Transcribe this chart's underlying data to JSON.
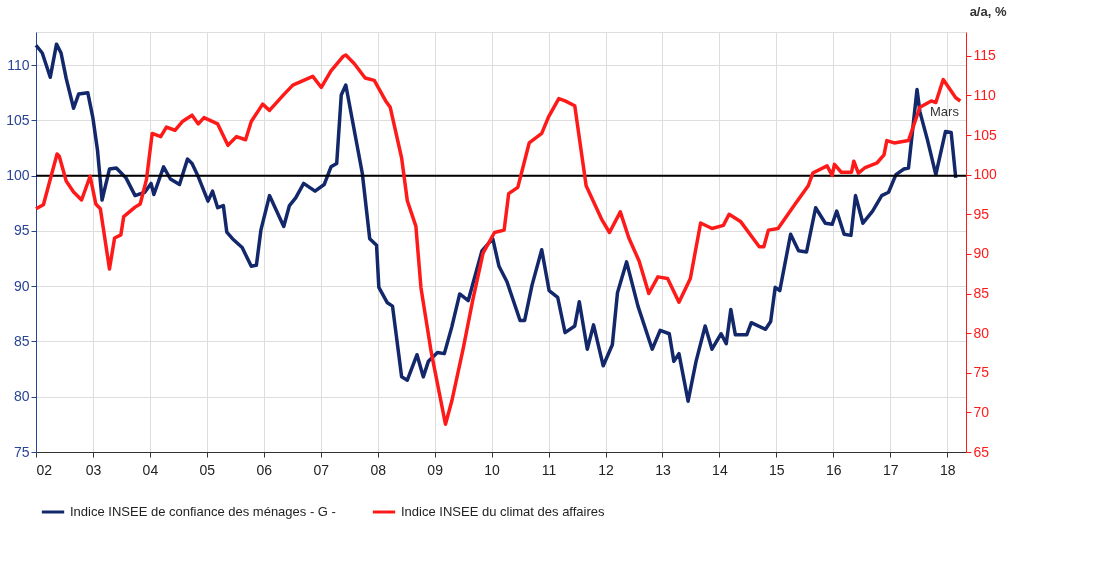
{
  "chart_data": {
    "type": "line",
    "y2label": "a/a, %",
    "xlim": [
      2002,
      2018.33
    ],
    "xticks": [
      {
        "value": 2002,
        "label": "02"
      },
      {
        "value": 2003,
        "label": "03"
      },
      {
        "value": 2004,
        "label": "04"
      },
      {
        "value": 2005,
        "label": "05"
      },
      {
        "value": 2006,
        "label": "06"
      },
      {
        "value": 2007,
        "label": "07"
      },
      {
        "value": 2008,
        "label": "08"
      },
      {
        "value": 2009,
        "label": "09"
      },
      {
        "value": 2010,
        "label": "10"
      },
      {
        "value": 2011,
        "label": "11"
      },
      {
        "value": 2012,
        "label": "12"
      },
      {
        "value": 2013,
        "label": "13"
      },
      {
        "value": 2014,
        "label": "14"
      },
      {
        "value": 2015,
        "label": "15"
      },
      {
        "value": 2016,
        "label": "16"
      },
      {
        "value": 2017,
        "label": "17"
      },
      {
        "value": 2018,
        "label": "18"
      }
    ],
    "ylim": [
      75,
      113
    ],
    "yticks": [
      75,
      80,
      85,
      90,
      95,
      100,
      105,
      110
    ],
    "y2lim": [
      65,
      118
    ],
    "y2ticks": [
      65,
      70,
      75,
      80,
      85,
      90,
      95,
      100,
      105,
      110,
      115
    ],
    "grid": true,
    "legend": "bottom",
    "line_style": "solid",
    "ref_lines": [
      {
        "axis": "y",
        "value": 100,
        "color": "#000000"
      }
    ],
    "annotations": [
      "Mars"
    ],
    "series": [
      {
        "name": "Indice INSEE de confiance des ménages - G -",
        "color": "#13286b",
        "x": [
          2002.0,
          2002.11,
          2002.25,
          2002.36,
          2002.44,
          2002.53,
          2002.66,
          2002.75,
          2002.91,
          2003.0,
          2003.08,
          2003.16,
          2003.29,
          2003.41,
          2003.58,
          2003.74,
          2003.91,
          2004.02,
          2004.07,
          2004.24,
          2004.36,
          2004.52,
          2004.66,
          2004.74,
          2004.85,
          2005.02,
          2005.1,
          2005.19,
          2005.29,
          2005.35,
          2005.45,
          2005.62,
          2005.78,
          2005.87,
          2005.95,
          2006.1,
          2006.35,
          2006.45,
          2006.56,
          2006.7,
          2006.9,
          2007.06,
          2007.18,
          2007.28,
          2007.36,
          2007.44,
          2007.73,
          2007.86,
          2007.98,
          2008.02,
          2008.17,
          2008.26,
          2008.42,
          2008.52,
          2008.69,
          2008.8,
          2008.89,
          2009.05,
          2009.17,
          2009.3,
          2009.44,
          2009.59,
          2009.83,
          2010.02,
          2010.13,
          2010.27,
          2010.5,
          2010.58,
          2010.71,
          2010.88,
          2011.01,
          2011.16,
          2011.29,
          2011.46,
          2011.54,
          2011.68,
          2011.79,
          2011.96,
          2012.12,
          2012.21,
          2012.37,
          2012.57,
          2012.82,
          2012.96,
          2013.12,
          2013.2,
          2013.29,
          2013.45,
          2013.59,
          2013.75,
          2013.87,
          2014.03,
          2014.12,
          2014.2,
          2014.28,
          2014.48,
          2014.56,
          2014.81,
          2014.9,
          2014.98,
          2015.06,
          2015.25,
          2015.39,
          2015.53,
          2015.69,
          2015.86,
          2015.98,
          2016.06,
          2016.19,
          2016.31,
          2016.39,
          2016.52,
          2016.69,
          2016.85,
          2016.97,
          2017.1,
          2017.24,
          2017.32,
          2017.47,
          2017.52,
          2017.65,
          2017.8,
          2017.97,
          2018.07,
          2018.15
        ],
        "values": [
          111.8,
          111.1,
          108.9,
          111.9,
          111.1,
          108.8,
          106.1,
          107.4,
          107.5,
          105.2,
          102.3,
          97.8,
          100.6,
          100.7,
          99.8,
          98.2,
          98.5,
          99.3,
          98.3,
          100.8,
          99.7,
          99.2,
          101.5,
          101.1,
          99.9,
          97.7,
          98.6,
          97.1,
          97.3,
          94.9,
          94.3,
          93.5,
          91.8,
          91.9,
          95.1,
          98.2,
          95.4,
          97.3,
          98.0,
          99.3,
          98.6,
          99.2,
          100.8,
          101.1,
          107.3,
          108.2,
          100.2,
          94.3,
          93.7,
          89.9,
          88.5,
          88.2,
          81.8,
          81.5,
          83.8,
          81.8,
          83.2,
          84.0,
          83.9,
          86.3,
          89.3,
          88.7,
          93.2,
          94.3,
          91.8,
          90.4,
          86.9,
          86.9,
          90.1,
          93.3,
          89.6,
          89.0,
          85.8,
          86.4,
          88.6,
          84.3,
          86.5,
          82.8,
          84.7,
          89.4,
          92.2,
          88.2,
          84.3,
          86.0,
          85.7,
          83.2,
          83.9,
          79.6,
          83.2,
          86.4,
          84.3,
          85.7,
          84.8,
          87.9,
          85.6,
          85.6,
          86.7,
          86.1,
          86.8,
          89.9,
          89.6,
          94.7,
          93.2,
          93.1,
          97.1,
          95.7,
          95.6,
          96.8,
          94.7,
          94.6,
          98.2,
          95.7,
          96.8,
          98.2,
          98.5,
          100.1,
          100.6,
          100.7,
          107.8,
          105.8,
          103.3,
          100.1,
          104.0,
          103.9,
          99.8
        ]
      },
      {
        "name": "Indice INSEE du climat des affaires",
        "color": "#ff1a1a",
        "axis": "y2",
        "x": [
          2002.0,
          2002.13,
          2002.37,
          2002.41,
          2002.53,
          2002.66,
          2002.8,
          2002.95,
          2003.05,
          2003.13,
          2003.29,
          2003.38,
          2003.49,
          2003.54,
          2003.74,
          2003.83,
          2003.94,
          2004.04,
          2004.19,
          2004.29,
          2004.44,
          2004.57,
          2004.74,
          2004.85,
          2004.95,
          2005.19,
          2005.37,
          2005.52,
          2005.68,
          2005.78,
          2005.98,
          2006.1,
          2006.35,
          2006.51,
          2006.73,
          2006.86,
          2007.01,
          2007.18,
          2007.39,
          2007.44,
          2007.59,
          2007.78,
          2007.94,
          2008.14,
          2008.22,
          2008.42,
          2008.52,
          2008.67,
          2008.76,
          2008.94,
          2009.19,
          2009.3,
          2009.5,
          2009.67,
          2009.85,
          2010.05,
          2010.22,
          2010.3,
          2010.46,
          2010.66,
          2010.88,
          2011.0,
          2011.18,
          2011.29,
          2011.46,
          2011.66,
          2011.93,
          2012.07,
          2012.26,
          2012.41,
          2012.59,
          2012.76,
          2012.92,
          2013.09,
          2013.29,
          2013.49,
          2013.67,
          2013.87,
          2014.07,
          2014.17,
          2014.37,
          2014.7,
          2014.78,
          2014.86,
          2015.03,
          2015.33,
          2015.56,
          2015.64,
          2015.89,
          2015.98,
          2016.02,
          2016.14,
          2016.32,
          2016.36,
          2016.44,
          2016.56,
          2016.77,
          2016.89,
          2016.94,
          2017.07,
          2017.32,
          2017.52,
          2017.72,
          2017.8,
          2017.93,
          2018.15,
          2018.23
        ],
        "values": [
          95.7,
          96.2,
          102.6,
          102.3,
          99.2,
          97.8,
          96.8,
          99.8,
          96.3,
          95.7,
          88.1,
          92.0,
          92.4,
          94.7,
          95.9,
          96.3,
          99.4,
          105.2,
          104.8,
          106.0,
          105.6,
          106.7,
          107.5,
          106.4,
          107.2,
          106.4,
          103.7,
          104.8,
          104.4,
          106.7,
          108.9,
          108.1,
          110.1,
          111.3,
          112.0,
          112.4,
          111.0,
          113.1,
          114.9,
          115.1,
          114.0,
          112.2,
          111.9,
          109.3,
          108.5,
          102.1,
          96.7,
          93.5,
          85.7,
          77.6,
          68.5,
          71.4,
          78.0,
          84.2,
          90.1,
          92.7,
          93.0,
          97.6,
          98.4,
          104.0,
          105.2,
          107.3,
          109.6,
          109.3,
          108.7,
          98.6,
          94.4,
          92.7,
          95.3,
          92.0,
          89.1,
          85.0,
          87.1,
          86.9,
          83.9,
          86.9,
          93.9,
          93.2,
          93.6,
          95.0,
          94.1,
          90.9,
          90.9,
          93.0,
          93.2,
          96.3,
          98.6,
          100.2,
          101.1,
          99.9,
          101.3,
          100.3,
          100.3,
          101.7,
          100.2,
          100.9,
          101.5,
          102.5,
          104.3,
          104.0,
          104.3,
          108.5,
          109.3,
          109.1,
          112.0,
          109.7,
          109.3
        ]
      }
    ]
  }
}
